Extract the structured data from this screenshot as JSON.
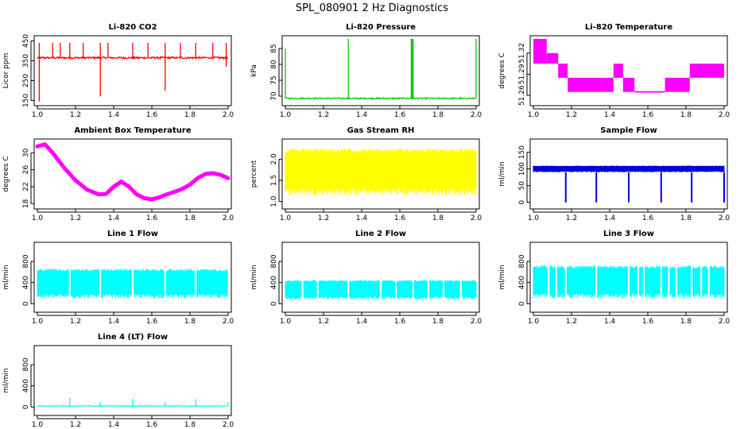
{
  "figure": {
    "title": "SPL_080901  2 Hz Diagnostics"
  },
  "colors": {
    "red": "#ff0000",
    "green": "#00cc00",
    "magenta": "#ff00ff",
    "yellow": "#ffff00",
    "blue": "#0000dd",
    "cyan": "#00ffff",
    "black": "#000000"
  },
  "chart_data": [
    {
      "id": "co2",
      "type": "line",
      "title": "Li-820 CO2",
      "ylabel": "Licor ppm",
      "color": "red",
      "x_ticks": [
        "1.0",
        "1.2",
        "1.4",
        "1.6",
        "1.8",
        "2.0"
      ],
      "y_ticks": [
        "150",
        "250",
        "350",
        "450"
      ],
      "y_tick_values": [
        150,
        250,
        350,
        450
      ],
      "ylim": [
        140,
        460
      ],
      "xlim": [
        1.0,
        2.0
      ],
      "baseline": 365,
      "noise": 5,
      "spikes": [
        {
          "x": 1.01,
          "y": 440
        },
        {
          "x": 1.01,
          "y": 145
        },
        {
          "x": 1.08,
          "y": 440
        },
        {
          "x": 1.12,
          "y": 440
        },
        {
          "x": 1.17,
          "y": 440
        },
        {
          "x": 1.24,
          "y": 440
        },
        {
          "x": 1.33,
          "y": 440
        },
        {
          "x": 1.33,
          "y": 170
        },
        {
          "x": 1.37,
          "y": 440
        },
        {
          "x": 1.5,
          "y": 440
        },
        {
          "x": 1.58,
          "y": 440
        },
        {
          "x": 1.67,
          "y": 440
        },
        {
          "x": 1.67,
          "y": 200
        },
        {
          "x": 1.75,
          "y": 440
        },
        {
          "x": 1.83,
          "y": 440
        },
        {
          "x": 1.92,
          "y": 440
        },
        {
          "x": 1.99,
          "y": 440
        },
        {
          "x": 1.99,
          "y": 320
        }
      ]
    },
    {
      "id": "pressure",
      "type": "line",
      "title": "Li-820 Pressure",
      "ylabel": "kPa",
      "color": "green",
      "x_ticks": [
        "1.0",
        "1.2",
        "1.4",
        "1.6",
        "1.8",
        "2.0"
      ],
      "y_ticks": [
        "70",
        "75",
        "80",
        "85"
      ],
      "y_tick_values": [
        70,
        75,
        80,
        85
      ],
      "ylim": [
        68,
        88
      ],
      "xlim": [
        1.0,
        2.0
      ],
      "baseline": 69.3,
      "noise": 0.2,
      "spikes": [
        {
          "x": 1.0,
          "y": 85
        },
        {
          "x": 1.33,
          "y": 88
        },
        {
          "x": 1.66,
          "y": 88
        },
        {
          "x": 1.665,
          "y": 88
        },
        {
          "x": 1.67,
          "y": 88
        },
        {
          "x": 2.0,
          "y": 88
        }
      ]
    },
    {
      "id": "licor-temp",
      "type": "line",
      "title": "Li-820 Temperature",
      "ylabel": "degrees C",
      "color": "magenta",
      "x_ticks": [
        "1.0",
        "1.2",
        "1.4",
        "1.6",
        "1.8",
        "2.0"
      ],
      "y_ticks": [
        "51.26",
        "51.29",
        "51.32"
      ],
      "y_tick_values": [
        51.26,
        51.29,
        51.32
      ],
      "ylim": [
        51.25,
        51.34
      ],
      "xlim": [
        1.0,
        2.0
      ],
      "bands": [
        {
          "x0": 1.0,
          "x1": 1.07,
          "y0": 51.305,
          "y1": 51.34
        },
        {
          "x0": 1.07,
          "x1": 1.13,
          "y0": 51.305,
          "y1": 51.32
        },
        {
          "x0": 1.13,
          "x1": 1.18,
          "y0": 51.285,
          "y1": 51.305
        },
        {
          "x0": 1.18,
          "x1": 1.36,
          "y0": 51.265,
          "y1": 51.285
        },
        {
          "x0": 1.36,
          "x1": 1.42,
          "y0": 51.265,
          "y1": 51.285
        },
        {
          "x0": 1.42,
          "x1": 1.47,
          "y0": 51.285,
          "y1": 51.305
        },
        {
          "x0": 1.47,
          "x1": 1.53,
          "y0": 51.265,
          "y1": 51.285
        },
        {
          "x0": 1.53,
          "x1": 1.69,
          "y0": 51.264,
          "y1": 51.266
        },
        {
          "x0": 1.69,
          "x1": 1.82,
          "y0": 51.265,
          "y1": 51.285
        },
        {
          "x0": 1.82,
          "x1": 2.0,
          "y0": 51.285,
          "y1": 51.305
        }
      ]
    },
    {
      "id": "ambient",
      "type": "line",
      "title": "Ambient Box Temperature",
      "ylabel": "degrees C",
      "color": "magenta",
      "x_ticks": [
        "1.0",
        "1.2",
        "1.4",
        "1.6",
        "1.8",
        "2.0"
      ],
      "y_ticks": [
        "18",
        "22",
        "26",
        "30"
      ],
      "y_tick_values": [
        18,
        22,
        26,
        30
      ],
      "ylim": [
        17.5,
        32.5
      ],
      "xlim": [
        1.0,
        2.0
      ],
      "curve_x": [
        1.0,
        1.04,
        1.08,
        1.14,
        1.2,
        1.26,
        1.32,
        1.36,
        1.4,
        1.44,
        1.48,
        1.52,
        1.56,
        1.6,
        1.64,
        1.68,
        1.72,
        1.76,
        1.8,
        1.84,
        1.88,
        1.92,
        1.96,
        2.0
      ],
      "curve_y": [
        31.5,
        32.0,
        30.0,
        26.5,
        23.5,
        21.3,
        20.2,
        20.3,
        22.0,
        23.2,
        22.0,
        20.2,
        19.3,
        19.0,
        19.5,
        20.2,
        20.8,
        21.5,
        22.5,
        24.0,
        25.0,
        25.2,
        24.8,
        24.0
      ]
    },
    {
      "id": "rh",
      "type": "line",
      "title": "Gas Stream RH",
      "ylabel": "percent",
      "color": "yellow",
      "x_ticks": [
        "1.0",
        "1.2",
        "1.4",
        "1.6",
        "1.8",
        "2.0"
      ],
      "y_ticks": [
        "1.0",
        "1.5",
        "2.0"
      ],
      "y_tick_values": [
        1.0,
        1.5,
        2.0
      ],
      "ylim": [
        0.9,
        2.4
      ],
      "xlim": [
        1.0,
        2.0
      ],
      "band_low": 1.15,
      "band_high": 2.25
    },
    {
      "id": "sample-flow",
      "type": "line",
      "title": "Sample Flow",
      "ylabel": "ml/min",
      "color": "blue",
      "x_ticks": [
        "1.0",
        "1.2",
        "1.4",
        "1.6",
        "1.8",
        "2.0"
      ],
      "y_ticks": [
        "0",
        "50",
        "100",
        "150"
      ],
      "y_tick_values": [
        0,
        50,
        100,
        150
      ],
      "ylim": [
        -10,
        180
      ],
      "xlim": [
        1.0,
        2.0
      ],
      "band_low": 90,
      "band_high": 110,
      "dips": [
        1.17,
        1.33,
        1.5,
        1.67,
        1.83,
        2.0
      ]
    },
    {
      "id": "line1",
      "type": "line",
      "title": "Line 1 Flow",
      "ylabel": "ml/min",
      "color": "cyan",
      "x_ticks": [
        "1.0",
        "1.2",
        "1.4",
        "1.6",
        "1.8",
        "2.0"
      ],
      "y_ticks": [
        "0",
        "400",
        "800"
      ],
      "y_tick_values": [
        0,
        400,
        800
      ],
      "ylim": [
        -100,
        1100
      ],
      "xlim": [
        1.0,
        2.0
      ],
      "band_low": 100,
      "band_high": 660,
      "gaps": [
        1.17,
        1.33,
        1.5,
        1.67,
        1.83
      ]
    },
    {
      "id": "line2",
      "type": "line",
      "title": "Line 2 Flow",
      "ylabel": "ml/min",
      "color": "cyan",
      "x_ticks": [
        "1.0",
        "1.2",
        "1.4",
        "1.6",
        "1.8",
        "2.0"
      ],
      "y_ticks": [
        "0",
        "400",
        "800"
      ],
      "y_tick_values": [
        0,
        400,
        800
      ],
      "ylim": [
        -100,
        1100
      ],
      "xlim": [
        1.0,
        2.0
      ],
      "band_low": 80,
      "band_high": 450,
      "gaps": [
        1.09,
        1.17,
        1.33,
        1.5,
        1.58,
        1.67,
        1.75,
        1.83,
        1.92
      ]
    },
    {
      "id": "line3",
      "type": "line",
      "title": "Line 3 Flow",
      "ylabel": "ml/min",
      "color": "cyan",
      "x_ticks": [
        "1.0",
        "1.2",
        "1.4",
        "1.6",
        "1.8",
        "2.0"
      ],
      "y_ticks": [
        "0",
        "400",
        "800"
      ],
      "y_tick_values": [
        0,
        400,
        800
      ],
      "ylim": [
        -100,
        1100
      ],
      "xlim": [
        1.0,
        2.0
      ],
      "band_low": 100,
      "band_high": 720,
      "gaps": [
        1.08,
        1.12,
        1.17,
        1.33,
        1.5,
        1.55,
        1.58,
        1.67,
        1.71,
        1.75,
        1.83,
        1.88,
        1.92
      ]
    },
    {
      "id": "line4",
      "type": "line",
      "title": "Line 4 (LT) Flow",
      "ylabel": "ml/min",
      "color": "cyan",
      "x_ticks": [
        "1.0",
        "1.2",
        "1.4",
        "1.6",
        "1.8",
        "2.0"
      ],
      "y_ticks": [
        "0",
        "400",
        "800"
      ],
      "y_tick_values": [
        0,
        400,
        800
      ],
      "ylim": [
        -100,
        1100
      ],
      "xlim": [
        1.0,
        2.0
      ],
      "baseline": 20,
      "noise": 8,
      "spikes": [
        {
          "x": 1.17,
          "y": 170
        },
        {
          "x": 1.33,
          "y": 100
        },
        {
          "x": 1.5,
          "y": 160
        },
        {
          "x": 1.67,
          "y": 90
        },
        {
          "x": 1.83,
          "y": 150
        },
        {
          "x": 2.0,
          "y": 90
        }
      ]
    }
  ]
}
